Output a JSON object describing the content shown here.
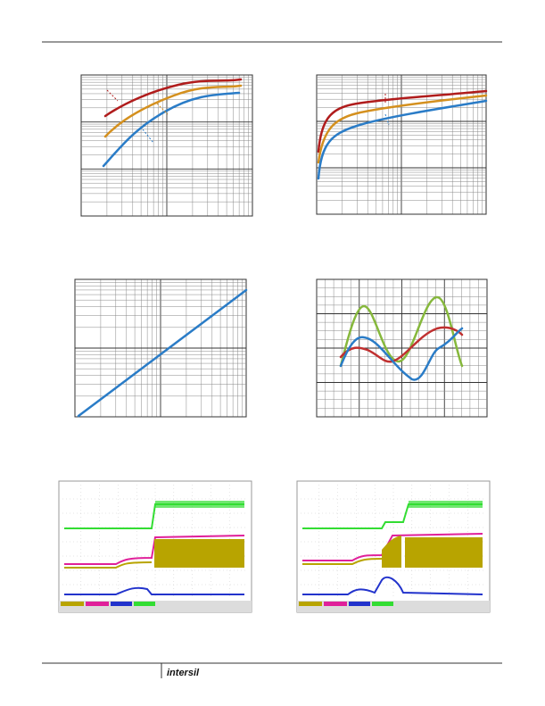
{
  "footer": {
    "logo": "intersil"
  }
}
